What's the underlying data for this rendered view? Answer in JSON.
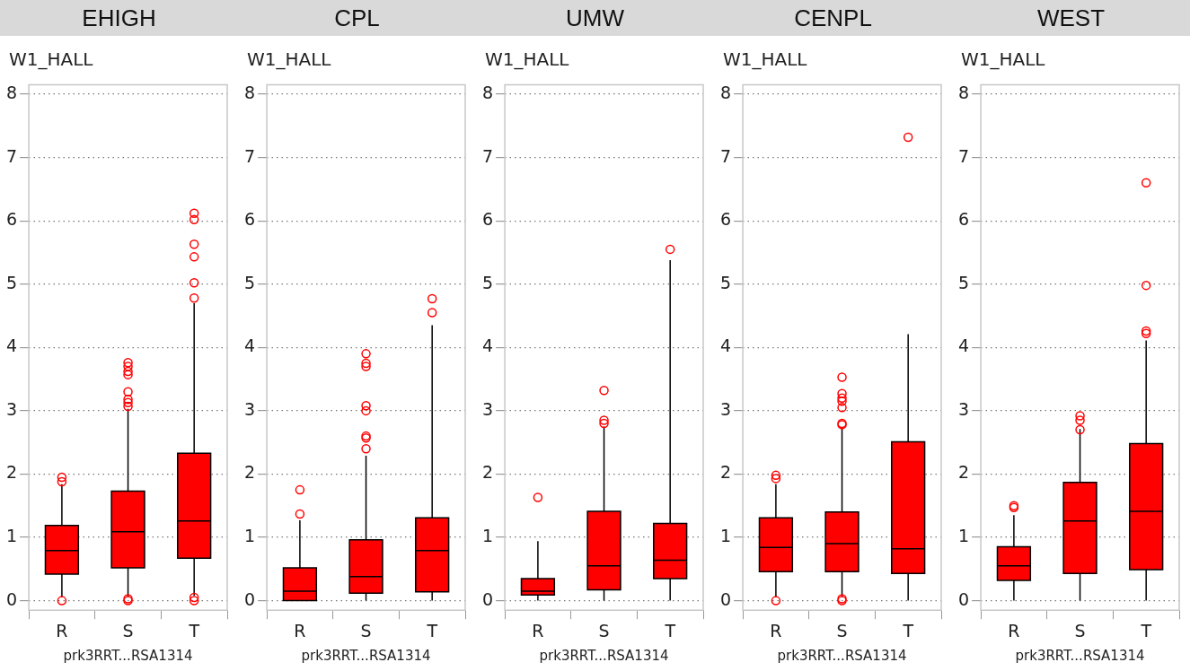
{
  "chart_data": [
    {
      "type": "box",
      "title": "EHIGH",
      "ylabel": "W1_HALL",
      "xlabel": "prk3RRT...RSA1314",
      "categories": [
        "R",
        "S",
        "T"
      ],
      "color": "#ff0000",
      "ylim": [
        -0.15,
        8.15
      ],
      "yticks": [
        0,
        1,
        2,
        3,
        4,
        5,
        6,
        7,
        8
      ],
      "grid": "y",
      "boxes": [
        {
          "low": 0.05,
          "q1": 0.42,
          "median": 0.79,
          "q3": 1.19,
          "high": 1.84,
          "outliers": [
            0,
            1.88,
            1.95
          ]
        },
        {
          "low": 0.06,
          "q1": 0.52,
          "median": 1.09,
          "q3": 1.73,
          "high": 3.03,
          "outliers": [
            0,
            0.03,
            3.07,
            3.13,
            3.18,
            3.3,
            3.57,
            3.62,
            3.7,
            3.76
          ]
        },
        {
          "low": 0.08,
          "q1": 0.67,
          "median": 1.26,
          "q3": 2.33,
          "high": 4.7,
          "outliers": [
            0,
            0.05,
            4.78,
            5.02,
            5.43,
            5.63,
            6.02,
            6.12
          ]
        }
      ]
    },
    {
      "type": "box",
      "title": "CPL",
      "ylabel": "W1_HALL",
      "xlabel": "prk3RRT...RSA1314",
      "categories": [
        "R",
        "S",
        "T"
      ],
      "color": "#ff0000",
      "ylim": [
        -0.15,
        8.15
      ],
      "yticks": [
        0,
        1,
        2,
        3,
        4,
        5,
        6,
        7,
        8
      ],
      "grid": "y",
      "boxes": [
        {
          "low": 0,
          "q1": 0,
          "median": 0.15,
          "q3": 0.52,
          "high": 1.27,
          "outliers": [
            1.37,
            1.75
          ]
        },
        {
          "low": 0,
          "q1": 0.12,
          "median": 0.38,
          "q3": 0.96,
          "high": 2.29,
          "outliers": [
            2.4,
            2.57,
            2.6,
            3.0,
            3.08,
            3.7,
            3.75,
            3.9
          ]
        },
        {
          "low": 0,
          "q1": 0.14,
          "median": 0.79,
          "q3": 1.31,
          "high": 4.35,
          "outliers": [
            4.55,
            4.77
          ]
        }
      ]
    },
    {
      "type": "box",
      "title": "UMW",
      "ylabel": "W1_HALL",
      "xlabel": "prk3RRT...RSA1314",
      "categories": [
        "R",
        "S",
        "T"
      ],
      "color": "#ff0000",
      "ylim": [
        -0.15,
        8.15
      ],
      "yticks": [
        0,
        1,
        2,
        3,
        4,
        5,
        6,
        7,
        8
      ],
      "grid": "y",
      "boxes": [
        {
          "low": 0,
          "q1": 0.09,
          "median": 0.15,
          "q3": 0.35,
          "high": 0.94,
          "outliers": [
            1.63
          ]
        },
        {
          "low": 0,
          "q1": 0.17,
          "median": 0.55,
          "q3": 1.41,
          "high": 2.75,
          "outliers": [
            2.8,
            2.85,
            3.32
          ]
        },
        {
          "low": 0,
          "q1": 0.35,
          "median": 0.64,
          "q3": 1.22,
          "high": 5.38,
          "outliers": [
            5.55
          ]
        }
      ]
    },
    {
      "type": "box",
      "title": "CENPL",
      "ylabel": "W1_HALL",
      "xlabel": "prk3RRT...RSA1314",
      "categories": [
        "R",
        "S",
        "T"
      ],
      "color": "#ff0000",
      "ylim": [
        -0.15,
        8.15
      ],
      "yticks": [
        0,
        1,
        2,
        3,
        4,
        5,
        6,
        7,
        8
      ],
      "grid": "y",
      "boxes": [
        {
          "low": 0.05,
          "q1": 0.46,
          "median": 0.84,
          "q3": 1.31,
          "high": 1.84,
          "outliers": [
            0,
            1.93,
            1.98
          ]
        },
        {
          "low": 0.06,
          "q1": 0.46,
          "median": 0.9,
          "q3": 1.4,
          "high": 2.74,
          "outliers": [
            0,
            0.03,
            2.78,
            2.8,
            3.05,
            3.15,
            3.2,
            3.27,
            3.53
          ]
        },
        {
          "low": 0,
          "q1": 0.43,
          "median": 0.82,
          "q3": 2.51,
          "high": 4.21,
          "outliers": [
            7.32
          ]
        }
      ]
    },
    {
      "type": "box",
      "title": "WEST",
      "ylabel": "W1_HALL",
      "xlabel": "prk3RRT...RSA1314",
      "categories": [
        "R",
        "S",
        "T"
      ],
      "color": "#ff0000",
      "ylim": [
        -0.15,
        8.15
      ],
      "yticks": [
        0,
        1,
        2,
        3,
        4,
        5,
        6,
        7,
        8
      ],
      "grid": "y",
      "boxes": [
        {
          "low": 0,
          "q1": 0.32,
          "median": 0.55,
          "q3": 0.85,
          "high": 1.35,
          "outliers": [
            1.47,
            1.5
          ]
        },
        {
          "low": 0,
          "q1": 0.43,
          "median": 1.26,
          "q3": 1.87,
          "high": 2.71,
          "outliers": [
            2.7,
            2.85,
            2.92
          ]
        },
        {
          "low": 0,
          "q1": 0.49,
          "median": 1.41,
          "q3": 2.48,
          "high": 4.11,
          "outliers": [
            4.22,
            4.26,
            4.98,
            6.6
          ]
        }
      ]
    }
  ]
}
